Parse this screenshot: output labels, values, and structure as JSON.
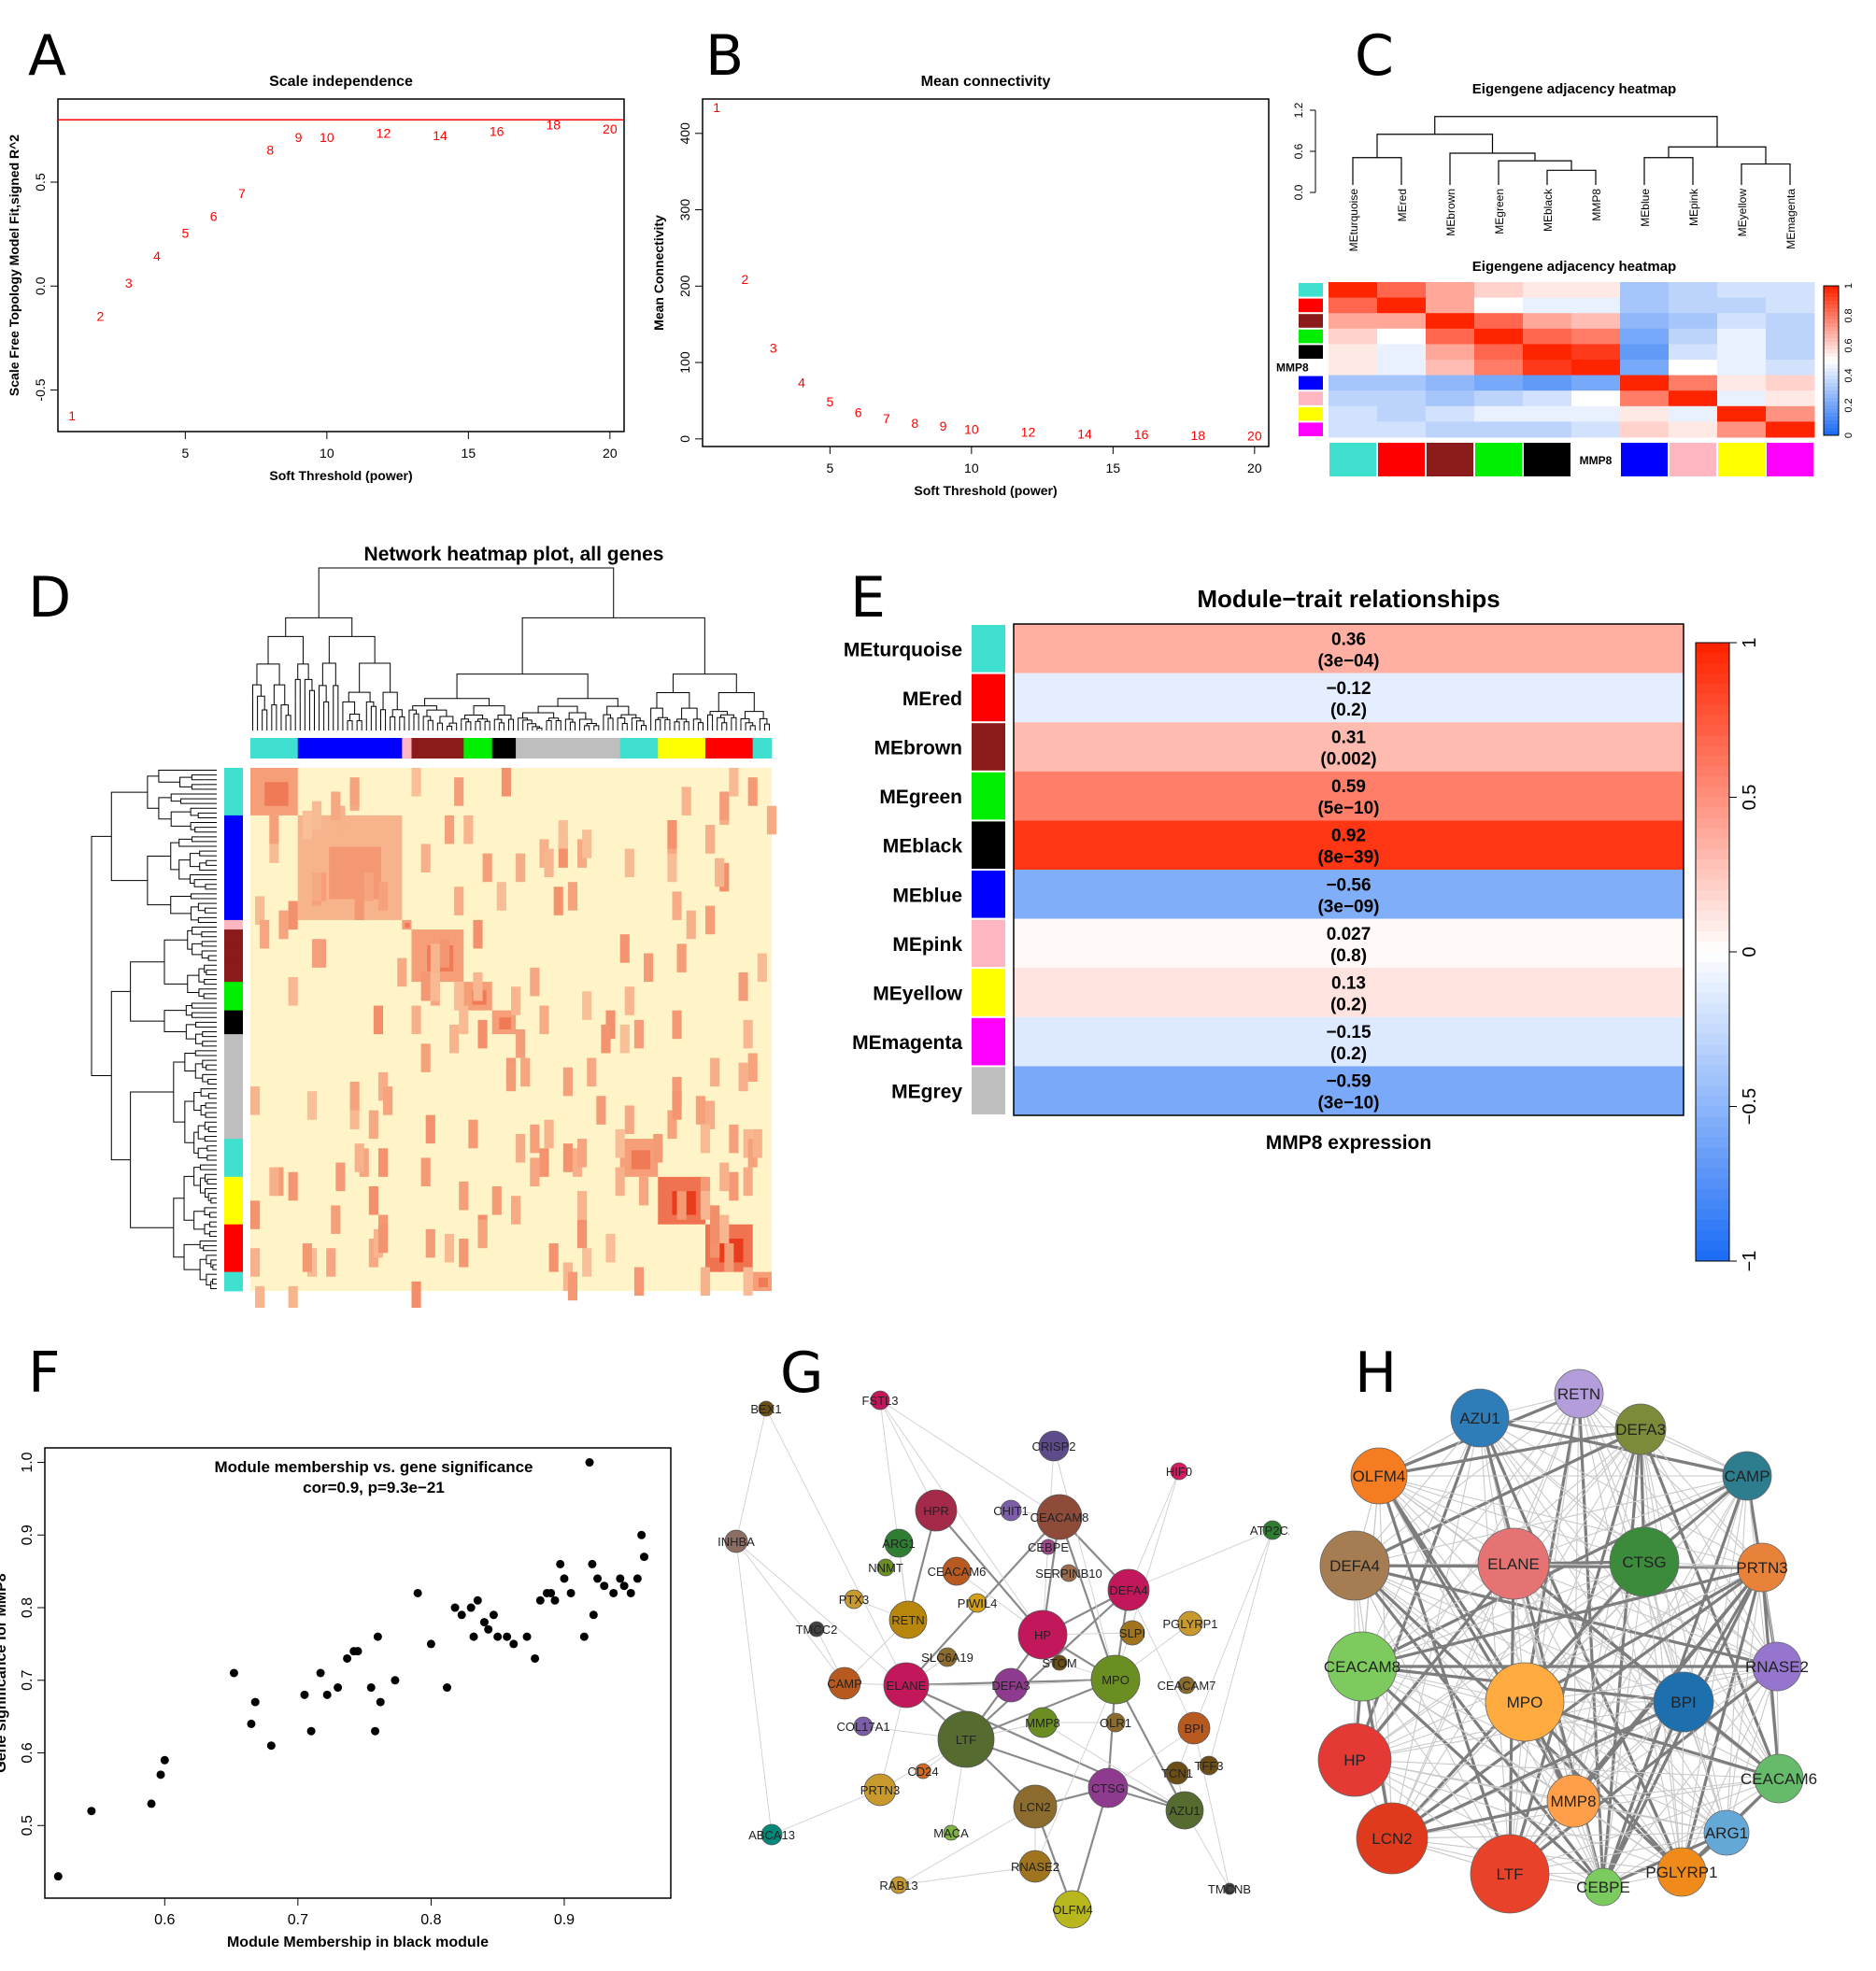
{
  "figure": {
    "panel_labels": [
      "A",
      "B",
      "C",
      "D",
      "E",
      "F",
      "G",
      "H"
    ]
  },
  "colors": {
    "turquoise": "#40E0D0",
    "red": "#FF0000",
    "brown": "#8B1A1A",
    "green": "#00EE00",
    "black": "#000000",
    "blue": "#0000FF",
    "pink": "#FFB6C1",
    "yellow": "#FFFF00",
    "magenta": "#FF00FF",
    "grey": "#BEBEBE",
    "accent_red": "#FF0000"
  },
  "panelA": {
    "chart_data": {
      "type": "scatter",
      "title": "Scale independence",
      "xlabel": "Soft Threshold (power)",
      "ylabel": "Scale Free Topology Model Fit,signed R^2",
      "x": [
        1,
        2,
        3,
        4,
        5,
        6,
        7,
        8,
        9,
        10,
        12,
        14,
        16,
        18,
        20
      ],
      "y": [
        -0.62,
        -0.14,
        0.02,
        0.15,
        0.26,
        0.34,
        0.45,
        0.66,
        0.72,
        0.72,
        0.74,
        0.73,
        0.75,
        0.78,
        0.76
      ],
      "xlim": [
        0.5,
        20.5
      ],
      "ylim": [
        -0.7,
        0.9
      ],
      "xticks": [
        5,
        10,
        15,
        20
      ],
      "yticks": [
        -0.5,
        0.0,
        0.5
      ],
      "ytick_labels": [
        "-0.5",
        "0.0",
        "0.5"
      ],
      "hline": 0.8
    }
  },
  "panelB": {
    "chart_data": {
      "type": "scatter",
      "title": "Mean connectivity",
      "xlabel": "Soft Threshold (power)",
      "ylabel": "Mean Connectivity",
      "x": [
        1,
        2,
        3,
        4,
        5,
        6,
        7,
        8,
        9,
        10,
        12,
        14,
        16,
        18,
        20
      ],
      "y": [
        435,
        210,
        120,
        75,
        50,
        36,
        28,
        22,
        18,
        14,
        10,
        8,
        7,
        6,
        5
      ],
      "xlim": [
        0.5,
        20.5
      ],
      "ylim": [
        -10,
        445
      ],
      "xticks": [
        5,
        10,
        15,
        20
      ],
      "yticks": [
        0,
        100,
        200,
        300,
        400
      ]
    }
  },
  "panelC": {
    "dendro_title": "Eigengene adjacency heatmap",
    "heat_title": "Eigengene adjacency heatmap",
    "dendro_yticks": [
      "0.0",
      "0.6",
      "1.2"
    ],
    "order": [
      "MEturquoise",
      "MEred",
      "MEbrown",
      "MEgreen",
      "MEblack",
      "MMP8",
      "MEblue",
      "MEpink",
      "MEyellow",
      "MEmagenta"
    ],
    "order_colors": [
      "turquoise",
      "red",
      "brown",
      "green",
      "black",
      "white",
      "blue",
      "pink",
      "yellow",
      "magenta"
    ],
    "bar_label": "MMP8",
    "side_label": "MMP8",
    "legend_ticks": [
      "0",
      "0.2",
      "0.4",
      "0.6",
      "0.8",
      "1"
    ],
    "matrix": [
      [
        1.0,
        0.85,
        0.7,
        0.6,
        0.55,
        0.55,
        0.3,
        0.35,
        0.4,
        0.4
      ],
      [
        0.85,
        1.0,
        0.7,
        0.5,
        0.45,
        0.45,
        0.3,
        0.35,
        0.35,
        0.4
      ],
      [
        0.7,
        0.7,
        1.0,
        0.85,
        0.7,
        0.65,
        0.25,
        0.3,
        0.4,
        0.35
      ],
      [
        0.6,
        0.5,
        0.85,
        1.0,
        0.85,
        0.8,
        0.2,
        0.35,
        0.45,
        0.35
      ],
      [
        0.55,
        0.45,
        0.7,
        0.85,
        1.0,
        0.95,
        0.15,
        0.4,
        0.45,
        0.35
      ],
      [
        0.55,
        0.45,
        0.65,
        0.8,
        0.95,
        1.0,
        0.2,
        0.5,
        0.45,
        0.4
      ],
      [
        0.3,
        0.3,
        0.25,
        0.2,
        0.15,
        0.2,
        1.0,
        0.8,
        0.55,
        0.6
      ],
      [
        0.35,
        0.35,
        0.3,
        0.35,
        0.4,
        0.5,
        0.8,
        1.0,
        0.45,
        0.55
      ],
      [
        0.4,
        0.35,
        0.4,
        0.45,
        0.45,
        0.45,
        0.55,
        0.45,
        1.0,
        0.75
      ],
      [
        0.4,
        0.4,
        0.35,
        0.35,
        0.35,
        0.4,
        0.6,
        0.55,
        0.75,
        1.0
      ]
    ]
  },
  "panelD": {
    "title": "Network heatmap plot, all genes",
    "modules": [
      {
        "color": "turquoise",
        "size": 0.08
      },
      {
        "color": "blue",
        "size": 0.18
      },
      {
        "color": "pink",
        "size": 0.02
      },
      {
        "color": "brown",
        "size": 0.09
      },
      {
        "color": "green",
        "size": 0.05
      },
      {
        "color": "black",
        "size": 0.04
      },
      {
        "color": "grey",
        "size": 0.18
      },
      {
        "color": "turquoise",
        "size": 0.07
      },
      {
        "color": "yellow",
        "size": 0.08
      },
      {
        "color": "red",
        "size": 0.08
      },
      {
        "color": "turquoise",
        "size": 0.03
      }
    ]
  },
  "panelE": {
    "title": "Module−trait relationships",
    "xlabel": "MMP8 expression",
    "legend_ticks": [
      "1",
      "0.5",
      "0",
      "−0.5",
      "−1"
    ],
    "rows": [
      {
        "module": "MEturquoise",
        "color": "turquoise",
        "value": 0.36,
        "corr": "0.36",
        "p": "(3e−04)"
      },
      {
        "module": "MEred",
        "color": "red",
        "value": -0.12,
        "corr": "−0.12",
        "p": "(0.2)"
      },
      {
        "module": "MEbrown",
        "color": "brown",
        "value": 0.31,
        "corr": "0.31",
        "p": "(0.002)"
      },
      {
        "module": "MEgreen",
        "color": "green",
        "value": 0.59,
        "corr": "0.59",
        "p": "(5e−10)"
      },
      {
        "module": "MEblack",
        "color": "black",
        "value": 0.92,
        "corr": "0.92",
        "p": "(8e−39)"
      },
      {
        "module": "MEblue",
        "color": "blue",
        "value": -0.56,
        "corr": "−0.56",
        "p": "(3e−09)"
      },
      {
        "module": "MEpink",
        "color": "pink",
        "value": 0.027,
        "corr": "0.027",
        "p": "(0.8)"
      },
      {
        "module": "MEyellow",
        "color": "yellow",
        "value": 0.13,
        "corr": "0.13",
        "p": "(0.2)"
      },
      {
        "module": "MEmagenta",
        "color": "magenta",
        "value": -0.15,
        "corr": "−0.15",
        "p": "(0.2)"
      },
      {
        "module": "MEgrey",
        "color": "grey",
        "value": -0.59,
        "corr": "−0.59",
        "p": "(3e−10)"
      }
    ]
  },
  "panelF": {
    "chart_data": {
      "type": "scatter",
      "title": "Module membership vs. gene significance",
      "subtitle": "cor=0.9, p=9.3e−21",
      "xlabel": "Module Membership in black module",
      "ylabel": "Gene significance for MMP8",
      "xlim": [
        0.51,
        0.98
      ],
      "ylim": [
        0.4,
        1.02
      ],
      "xticks": [
        0.6,
        0.7,
        0.8,
        0.9
      ],
      "yticks": [
        0.5,
        0.6,
        0.7,
        0.8,
        0.9,
        1.0
      ],
      "ytick_labels": [
        "0.5",
        "0.6",
        "0.7",
        "0.8",
        "0.9",
        "1.0"
      ],
      "points": [
        [
          0.52,
          0.43
        ],
        [
          0.545,
          0.52
        ],
        [
          0.59,
          0.53
        ],
        [
          0.597,
          0.57
        ],
        [
          0.6,
          0.59
        ],
        [
          0.652,
          0.71
        ],
        [
          0.665,
          0.64
        ],
        [
          0.668,
          0.67
        ],
        [
          0.68,
          0.61
        ],
        [
          0.705,
          0.68
        ],
        [
          0.71,
          0.63
        ],
        [
          0.717,
          0.71
        ],
        [
          0.722,
          0.68
        ],
        [
          0.73,
          0.69
        ],
        [
          0.737,
          0.73
        ],
        [
          0.742,
          0.74
        ],
        [
          0.745,
          0.74
        ],
        [
          0.755,
          0.69
        ],
        [
          0.758,
          0.63
        ],
        [
          0.76,
          0.76
        ],
        [
          0.762,
          0.67
        ],
        [
          0.773,
          0.7
        ],
        [
          0.79,
          0.82
        ],
        [
          0.8,
          0.75
        ],
        [
          0.812,
          0.69
        ],
        [
          0.818,
          0.8
        ],
        [
          0.823,
          0.79
        ],
        [
          0.83,
          0.8
        ],
        [
          0.832,
          0.76
        ],
        [
          0.835,
          0.81
        ],
        [
          0.84,
          0.78
        ],
        [
          0.843,
          0.77
        ],
        [
          0.847,
          0.79
        ],
        [
          0.85,
          0.76
        ],
        [
          0.857,
          0.76
        ],
        [
          0.862,
          0.75
        ],
        [
          0.872,
          0.76
        ],
        [
          0.878,
          0.73
        ],
        [
          0.882,
          0.81
        ],
        [
          0.887,
          0.82
        ],
        [
          0.89,
          0.82
        ],
        [
          0.893,
          0.81
        ],
        [
          0.897,
          0.86
        ],
        [
          0.9,
          0.84
        ],
        [
          0.905,
          0.82
        ],
        [
          0.919,
          1.0
        ],
        [
          0.921,
          0.86
        ],
        [
          0.925,
          0.84
        ],
        [
          0.93,
          0.83
        ],
        [
          0.937,
          0.82
        ],
        [
          0.942,
          0.84
        ],
        [
          0.945,
          0.83
        ],
        [
          0.95,
          0.82
        ],
        [
          0.955,
          0.84
        ],
        [
          0.958,
          0.9
        ],
        [
          0.96,
          0.87
        ],
        [
          0.915,
          0.76
        ],
        [
          0.922,
          0.79
        ]
      ]
    }
  },
  "panelG": {
    "nodes": [
      {
        "label": "FSTL3",
        "c": "#C2185B",
        "r": 10
      },
      {
        "label": "BEX1",
        "c": "#6B4E16",
        "r": 8
      },
      {
        "label": "CRISP2",
        "c": "#5E4B8B",
        "r": 16
      },
      {
        "label": "HIF0",
        "c": "#D81B60",
        "r": 9
      },
      {
        "label": "ATP2C2",
        "c": "#2E7D32",
        "r": 10
      },
      {
        "label": "INHBA",
        "c": "#8D6E63",
        "r": 12
      },
      {
        "label": "HPR",
        "c": "#A52A4A",
        "r": 22
      },
      {
        "label": "CHIT1",
        "c": "#7B5EA7",
        "r": 11
      },
      {
        "label": "CEACAM8",
        "c": "#8E4B3A",
        "r": 24
      },
      {
        "label": "ARG1",
        "c": "#2E7D32",
        "r": 15
      },
      {
        "label": "CEBPE",
        "c": "#9C4A8A",
        "r": 8
      },
      {
        "label": "NNMT",
        "c": "#6B8E23",
        "r": 9
      },
      {
        "label": "CEACAM6",
        "c": "#B85A1F",
        "r": 15
      },
      {
        "label": "SERPINB10",
        "c": "#9C6B4A",
        "r": 9
      },
      {
        "label": "DEFA4",
        "c": "#C2185B",
        "r": 22
      },
      {
        "label": "PTX3",
        "c": "#C89A2E",
        "r": 10
      },
      {
        "label": "PIWIL4",
        "c": "#D4A017",
        "r": 10
      },
      {
        "label": "PGLYRP1",
        "c": "#C89A2E",
        "r": 13
      },
      {
        "label": "TMCC2",
        "c": "#424242",
        "r": 8
      },
      {
        "label": "RETN",
        "c": "#B8860B",
        "r": 20
      },
      {
        "label": "HP",
        "c": "#C2185B",
        "r": 26
      },
      {
        "label": "SLPI",
        "c": "#A0741E",
        "r": 13
      },
      {
        "label": "SLC6A19",
        "c": "#8B6B2E",
        "r": 10
      },
      {
        "label": "STOM",
        "c": "#6B4E16",
        "r": 8
      },
      {
        "label": "MPO",
        "c": "#6B8E23",
        "r": 26
      },
      {
        "label": "CEACAM7",
        "c": "#8B6B2E",
        "r": 9
      },
      {
        "label": "CAMP",
        "c": "#B85A1F",
        "r": 17
      },
      {
        "label": "ELANE",
        "c": "#C2185B",
        "r": 24
      },
      {
        "label": "DEFA3",
        "c": "#8E3A8E",
        "r": 18
      },
      {
        "label": "BPI",
        "c": "#B85A1F",
        "r": 17
      },
      {
        "label": "COL17A1",
        "c": "#7B5EA7",
        "r": 10
      },
      {
        "label": "LTF",
        "c": "#556B2F",
        "r": 30
      },
      {
        "label": "MMP8",
        "c": "#6B8E23",
        "r": 16
      },
      {
        "label": "OLR1",
        "c": "#8B6B2E",
        "r": 10
      },
      {
        "label": "TFF3",
        "c": "#6B4E16",
        "r": 10
      },
      {
        "label": "CD24",
        "c": "#D2691E",
        "r": 8
      },
      {
        "label": "TCN1",
        "c": "#6B4E16",
        "r": 12
      },
      {
        "label": "PRTN3",
        "c": "#C89A2E",
        "r": 17
      },
      {
        "label": "LCN2",
        "c": "#8B6B2E",
        "r": 23
      },
      {
        "label": "CTSG",
        "c": "#8E3A8E",
        "r": 21
      },
      {
        "label": "AZU1",
        "c": "#556B2F",
        "r": 20
      },
      {
        "label": "ABCA13",
        "c": "#00897B",
        "r": 11
      },
      {
        "label": "MACA",
        "c": "#7CB342",
        "r": 8
      },
      {
        "label": "RNASE2",
        "c": "#A0741E",
        "r": 17
      },
      {
        "label": "RAB13",
        "c": "#C89A2E",
        "r": 9
      },
      {
        "label": "OLFM4",
        "c": "#B8B81E",
        "r": 20
      },
      {
        "label": "TMCNB",
        "c": "#424242",
        "r": 6
      }
    ],
    "edges": [
      [
        "LTF",
        "MPO"
      ],
      [
        "LTF",
        "LCN2"
      ],
      [
        "LTF",
        "ELANE"
      ],
      [
        "LTF",
        "CTSG"
      ],
      [
        "LTF",
        "HP"
      ],
      [
        "LTF",
        "DEFA4"
      ],
      [
        "MPO",
        "ELANE"
      ],
      [
        "MPO",
        "AZU1"
      ],
      [
        "MPO",
        "CTSG"
      ],
      [
        "MPO",
        "DEFA4"
      ],
      [
        "MPO",
        "HP"
      ],
      [
        "MPO",
        "CEACAM8"
      ],
      [
        "ELANE",
        "DEFA3"
      ],
      [
        "ELANE",
        "CAMP"
      ],
      [
        "ELANE",
        "PRTN3"
      ],
      [
        "ELANE",
        "AZU1"
      ],
      [
        "ELANE",
        "CEACAM8"
      ],
      [
        "HP",
        "HPR"
      ],
      [
        "HP",
        "CEACAM8"
      ],
      [
        "HP",
        "DEFA4"
      ],
      [
        "LCN2",
        "CTSG"
      ],
      [
        "LCN2",
        "OLFM4"
      ],
      [
        "LCN2",
        "RNASE2"
      ],
      [
        "CTSG",
        "AZU1"
      ],
      [
        "CTSG",
        "BPI"
      ],
      [
        "BPI",
        "DEFA4"
      ],
      [
        "BPI",
        "TCN1"
      ],
      [
        "AZU1",
        "TCN1"
      ],
      [
        "AZU1",
        "MMP8"
      ],
      [
        "MMP8",
        "OLR1"
      ],
      [
        "MMP8",
        "LTF"
      ],
      [
        "CAMP",
        "RETN"
      ],
      [
        "RETN",
        "HPR"
      ],
      [
        "RETN",
        "ARG1"
      ],
      [
        "CEACAM8",
        "DEFA4"
      ],
      [
        "CEACAM6",
        "HP"
      ],
      [
        "DEFA3",
        "MPO"
      ],
      [
        "PRTN3",
        "LTF"
      ],
      [
        "OLFM4",
        "CTSG"
      ],
      [
        "RNASE2",
        "MPO"
      ],
      [
        "FSTL3",
        "HPR"
      ],
      [
        "FSTL3",
        "CEACAM8"
      ],
      [
        "FSTL3",
        "RETN"
      ],
      [
        "FSTL3",
        "HP"
      ],
      [
        "BEX1",
        "ELANE"
      ],
      [
        "BEX1",
        "INHBA"
      ],
      [
        "INHBA",
        "CAMP"
      ],
      [
        "INHBA",
        "LTF"
      ],
      [
        "INHBA",
        "ABCA13"
      ],
      [
        "CRISP2",
        "HP"
      ],
      [
        "CRISP2",
        "MPO"
      ],
      [
        "HIF0",
        "DEFA4"
      ],
      [
        "HIF0",
        "MPO"
      ],
      [
        "ATP2C2",
        "BPI"
      ],
      [
        "ATP2C2",
        "DEFA4"
      ],
      [
        "ATP2C2",
        "TFF3"
      ],
      [
        "TMCNB",
        "AZU1"
      ],
      [
        "TMCNB",
        "BPI"
      ],
      [
        "RAB13",
        "LCN2"
      ],
      [
        "RAB13",
        "RNASE2"
      ],
      [
        "ABCA13",
        "PRTN3"
      ],
      [
        "TMCC2",
        "CAMP"
      ],
      [
        "COL17A1",
        "LTF"
      ],
      [
        "PGLYRP1",
        "MPO"
      ],
      [
        "SLPI",
        "HP"
      ],
      [
        "CHIT1",
        "CEACAM8"
      ],
      [
        "PTX3",
        "RETN"
      ],
      [
        "NNMT",
        "ARG1"
      ],
      [
        "MACA",
        "LTF"
      ],
      [
        "CD24",
        "LTF"
      ],
      [
        "STOM",
        "MPO"
      ],
      [
        "SLC6A19",
        "ELANE"
      ]
    ]
  },
  "panelH": {
    "nodes": [
      {
        "label": "RETN",
        "c": "#B39DDB",
        "r": 26
      },
      {
        "label": "AZU1",
        "c": "#2E7DB8",
        "r": 31
      },
      {
        "label": "DEFA3",
        "c": "#7B8B3A",
        "r": 27
      },
      {
        "label": "OLFM4",
        "c": "#F57C20",
        "r": 30
      },
      {
        "label": "CAMP",
        "c": "#2E7D8E",
        "r": 26
      },
      {
        "label": "DEFA4",
        "c": "#A67C52",
        "r": 37
      },
      {
        "label": "ELANE",
        "c": "#E57373",
        "r": 38
      },
      {
        "label": "CTSG",
        "c": "#3C8A3C",
        "r": 37
      },
      {
        "label": "PRTN3",
        "c": "#E8823A",
        "r": 26
      },
      {
        "label": "CEACAM8",
        "c": "#7DCB5E",
        "r": 37
      },
      {
        "label": "RNASE2",
        "c": "#9575CD",
        "r": 26
      },
      {
        "label": "MPO",
        "c": "#FFAB40",
        "r": 42
      },
      {
        "label": "BPI",
        "c": "#1E6FAE",
        "r": 32
      },
      {
        "label": "HP",
        "c": "#E53935",
        "r": 39
      },
      {
        "label": "CEACAM6",
        "c": "#66BB6A",
        "r": 26
      },
      {
        "label": "MMP8",
        "c": "#FF9F4A",
        "r": 28
      },
      {
        "label": "ARG1",
        "c": "#64A8D8",
        "r": 24
      },
      {
        "label": "LCN2",
        "c": "#E03A1E",
        "r": 38
      },
      {
        "label": "LTF",
        "c": "#E8432A",
        "r": 42
      },
      {
        "label": "CEBPE",
        "c": "#7BCB5E",
        "r": 20
      },
      {
        "label": "PGLYRP1",
        "c": "#F08A1A",
        "r": 26
      }
    ]
  }
}
